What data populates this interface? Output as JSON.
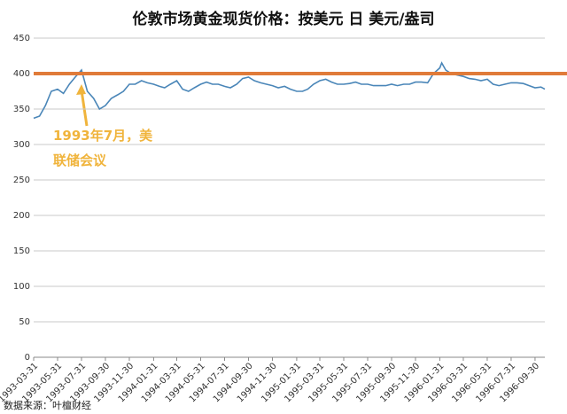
{
  "chart_data": {
    "type": "line",
    "title": "伦敦市场黄金现货价格：按美元 日 美元/盎司",
    "x": [
      "1993-03-31",
      "1993-04-15",
      "1993-04-30",
      "1993-05-15",
      "1993-05-31",
      "1993-06-15",
      "1993-06-30",
      "1993-07-15",
      "1993-07-31",
      "1993-08-15",
      "1993-08-31",
      "1993-09-15",
      "1993-09-30",
      "1993-10-15",
      "1993-10-31",
      "1993-11-15",
      "1993-11-30",
      "1993-12-15",
      "1993-12-31",
      "1994-01-15",
      "1994-01-31",
      "1994-02-15",
      "1994-02-28",
      "1994-03-15",
      "1994-03-31",
      "1994-04-15",
      "1994-04-30",
      "1994-05-15",
      "1994-05-31",
      "1994-06-15",
      "1994-06-30",
      "1994-07-15",
      "1994-07-31",
      "1994-08-15",
      "1994-08-31",
      "1994-09-15",
      "1994-09-30",
      "1994-10-15",
      "1994-10-31",
      "1994-11-15",
      "1994-11-30",
      "1994-12-15",
      "1994-12-31",
      "1995-01-15",
      "1995-01-31",
      "1995-02-15",
      "1995-02-28",
      "1995-03-15",
      "1995-03-31",
      "1995-04-15",
      "1995-04-30",
      "1995-05-15",
      "1995-05-31",
      "1995-06-15",
      "1995-06-30",
      "1995-07-15",
      "1995-07-31",
      "1995-08-15",
      "1995-08-31",
      "1995-09-15",
      "1995-09-30",
      "1995-10-15",
      "1995-10-31",
      "1995-11-15",
      "1995-11-30",
      "1995-12-15",
      "1995-12-31",
      "1996-01-15",
      "1996-01-31",
      "1996-02-05",
      "1996-02-15",
      "1996-02-29",
      "1996-03-15",
      "1996-03-31",
      "1996-04-15",
      "1996-04-30",
      "1996-05-15",
      "1996-05-31",
      "1996-06-15",
      "1996-06-30",
      "1996-07-15",
      "1996-07-31",
      "1996-08-15",
      "1996-08-31",
      "1996-09-15",
      "1996-09-30",
      "1996-10-15",
      "1996-10-25"
    ],
    "values": [
      337,
      340,
      355,
      375,
      378,
      372,
      385,
      395,
      405,
      375,
      365,
      350,
      355,
      365,
      370,
      375,
      385,
      385,
      390,
      387,
      385,
      382,
      380,
      385,
      390,
      378,
      375,
      380,
      385,
      388,
      385,
      385,
      382,
      380,
      385,
      393,
      395,
      390,
      387,
      385,
      383,
      380,
      382,
      378,
      375,
      375,
      378,
      385,
      390,
      392,
      388,
      385,
      385,
      386,
      388,
      385,
      385,
      383,
      383,
      383,
      385,
      383,
      385,
      385,
      388,
      388,
      387,
      400,
      408,
      415,
      405,
      400,
      398,
      396,
      393,
      392,
      390,
      392,
      385,
      383,
      385,
      387,
      387,
      386,
      383,
      380,
      381,
      378
    ],
    "color": "#4a86b8",
    "xlim": [
      "1993-03-31",
      "1996-10-25"
    ],
    "xticks": [
      "1993-03-31",
      "1993-05-31",
      "1993-07-31",
      "1993-09-30",
      "1993-11-30",
      "1994-01-31",
      "1994-03-31",
      "1994-05-31",
      "1994-07-31",
      "1994-09-30",
      "1994-11-30",
      "1995-01-31",
      "1995-03-31",
      "1995-05-31",
      "1995-07-31",
      "1995-09-30",
      "1995-11-30",
      "1996-01-31",
      "1996-03-31",
      "1996-05-31",
      "1996-07-31",
      "1996-09-30"
    ],
    "ylim": [
      0,
      450
    ],
    "yticks": [
      0,
      50,
      100,
      150,
      200,
      250,
      300,
      350,
      400,
      450
    ],
    "grid": true,
    "reference_line": {
      "value": 400,
      "color": "#e07b39"
    },
    "annotation": [
      "1993年7月，美",
      "联储会议"
    ],
    "source": "数据来源：叶檀财经"
  }
}
